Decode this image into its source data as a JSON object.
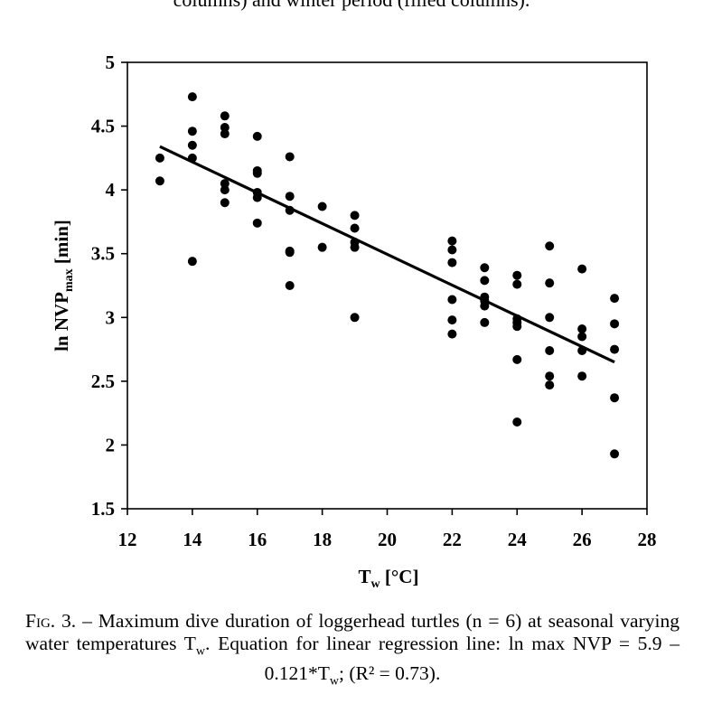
{
  "top_caption_fragment": "columns) and winter period (filled columns).",
  "caption": {
    "label": "Fig. 3.",
    "text": " – Maximum dive duration of loggerhead turtles (n = 6) at seasonal varying water temperatures T_w. Equation for linear regression line: ln max NVP = 5.9 – 0.121*T_w; (R² = 0.73)."
  },
  "chart_data": {
    "type": "scatter",
    "xlabel": "Tw [°C]",
    "ylabel": "ln NVPmax [min]",
    "xlim": [
      12,
      28
    ],
    "ylim": [
      1.5,
      5
    ],
    "xticks": [
      "12",
      "14",
      "16",
      "18",
      "20",
      "22",
      "24",
      "26",
      "28"
    ],
    "yticks": [
      "1.5",
      "2",
      "2.5",
      "3",
      "3.5",
      "4",
      "4.5",
      "5"
    ],
    "grid": false,
    "legend": "none",
    "regression": {
      "x": [
        13,
        27
      ],
      "y": [
        4.34,
        2.65
      ]
    },
    "points": [
      [
        13,
        4.25
      ],
      [
        13,
        4.07
      ],
      [
        14,
        4.73
      ],
      [
        14,
        4.46
      ],
      [
        14,
        4.35
      ],
      [
        14,
        4.25
      ],
      [
        14,
        3.44
      ],
      [
        15,
        4.58
      ],
      [
        15,
        4.49
      ],
      [
        15,
        4.44
      ],
      [
        15,
        4.05
      ],
      [
        15,
        4.0
      ],
      [
        15,
        3.9
      ],
      [
        16,
        4.42
      ],
      [
        16,
        4.15
      ],
      [
        16,
        4.13
      ],
      [
        16,
        3.98
      ],
      [
        16,
        3.94
      ],
      [
        16,
        3.74
      ],
      [
        17,
        4.26
      ],
      [
        17,
        3.95
      ],
      [
        17,
        3.84
      ],
      [
        17,
        3.52
      ],
      [
        17,
        3.51
      ],
      [
        17,
        3.25
      ],
      [
        18,
        3.87
      ],
      [
        18,
        3.55
      ],
      [
        19,
        3.8
      ],
      [
        19,
        3.7
      ],
      [
        19,
        3.59
      ],
      [
        19,
        3.55
      ],
      [
        19,
        3.0
      ],
      [
        22,
        3.6
      ],
      [
        22,
        3.53
      ],
      [
        22,
        3.43
      ],
      [
        22,
        3.14
      ],
      [
        22,
        2.98
      ],
      [
        22,
        2.87
      ],
      [
        23,
        3.39
      ],
      [
        23,
        3.29
      ],
      [
        23,
        3.16
      ],
      [
        23,
        3.13
      ],
      [
        23,
        3.09
      ],
      [
        23,
        2.96
      ],
      [
        24,
        3.33
      ],
      [
        24,
        3.26
      ],
      [
        24,
        2.99
      ],
      [
        24,
        2.96
      ],
      [
        24,
        2.93
      ],
      [
        24,
        2.67
      ],
      [
        24,
        2.18
      ],
      [
        25,
        3.56
      ],
      [
        25,
        3.27
      ],
      [
        25,
        3.0
      ],
      [
        25,
        2.74
      ],
      [
        25,
        2.54
      ],
      [
        25,
        2.47
      ],
      [
        26,
        3.38
      ],
      [
        26,
        2.91
      ],
      [
        26,
        2.85
      ],
      [
        26,
        2.74
      ],
      [
        26,
        2.54
      ],
      [
        27,
        3.15
      ],
      [
        27,
        2.95
      ],
      [
        27,
        2.75
      ],
      [
        27,
        2.37
      ],
      [
        27,
        1.93
      ]
    ]
  }
}
